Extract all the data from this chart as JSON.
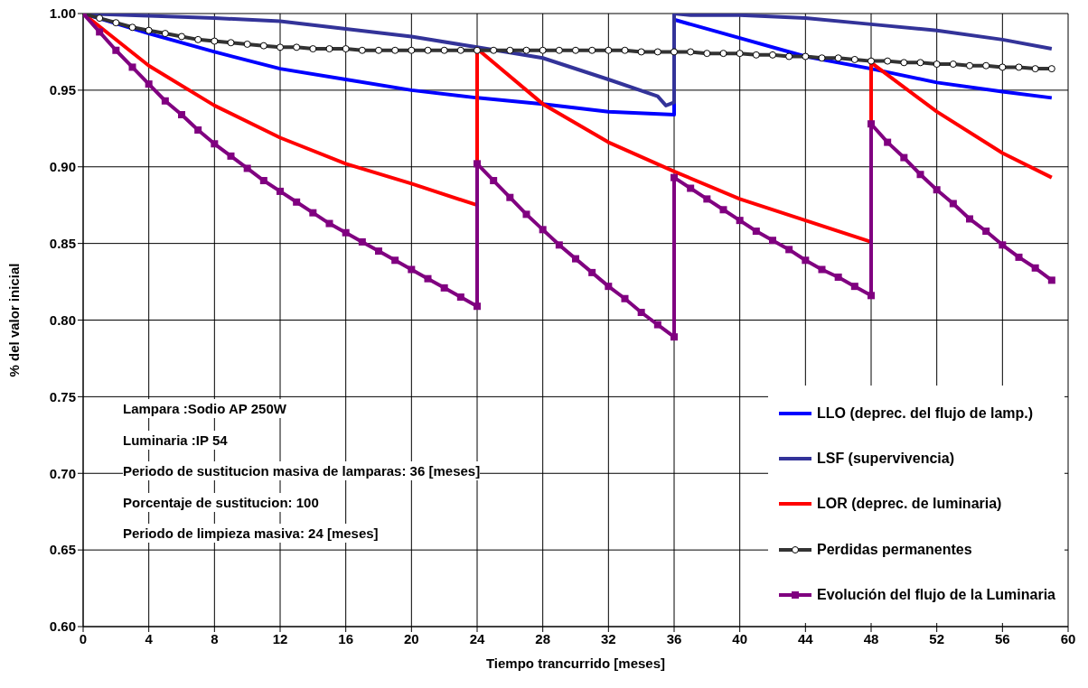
{
  "chart_data": {
    "type": "line",
    "xlabel": "Tiempo trancurrido [meses]",
    "ylabel": "% del valor inicial",
    "xlim": [
      0,
      60
    ],
    "xticks": [
      0,
      4,
      8,
      12,
      16,
      20,
      24,
      28,
      32,
      36,
      40,
      44,
      48,
      52,
      56,
      60
    ],
    "ylim": [
      0.6,
      1.0
    ],
    "yticks": [
      {
        "value": 0.6,
        "label": "0.60"
      },
      {
        "value": 0.65,
        "label": "0.65"
      },
      {
        "value": 0.7,
        "label": "0.70"
      },
      {
        "value": 0.75,
        "label": "0.75"
      },
      {
        "value": 0.8,
        "label": "0.80"
      },
      {
        "value": 0.85,
        "label": "0.85"
      },
      {
        "value": 0.9,
        "label": "0.90"
      },
      {
        "value": 0.95,
        "label": "0.95"
      },
      {
        "value": 1.0,
        "label": "1.00"
      }
    ],
    "grid": true,
    "legend": "bottom right",
    "line_style": "solid",
    "annotations": [
      "Lampara :Sodio AP 250W",
      "Luminaria :IP 54",
      "Periodo de sustitucion masiva de lamparas: 36  [meses]",
      "Porcentaje de sustitucion: 100",
      "Periodo de limpieza masiva: 24  [meses]"
    ],
    "series": [
      {
        "name": "LLO (deprec. del flujo de lamp.)",
        "color": "#0000ff",
        "marker": "none",
        "x": [
          0,
          4,
          8,
          12,
          16,
          20,
          24,
          28,
          32,
          36,
          36,
          40,
          44,
          48,
          52,
          56,
          59
        ],
        "values": [
          1.0,
          0.987,
          0.975,
          0.964,
          0.957,
          0.95,
          0.945,
          0.941,
          0.936,
          0.934,
          0.996,
          0.984,
          0.972,
          0.964,
          0.955,
          0.949,
          0.945
        ]
      },
      {
        "name": "LSF (supervivencia)",
        "color": "#333399",
        "marker": "none",
        "x": [
          0,
          8,
          12,
          16,
          20,
          24,
          28,
          32,
          35,
          35.5,
          36,
          36,
          37,
          40,
          44,
          48,
          52,
          56,
          59
        ],
        "values": [
          1.0,
          0.997,
          0.995,
          0.99,
          0.985,
          0.978,
          0.971,
          0.957,
          0.946,
          0.94,
          0.942,
          1.0,
          0.999,
          0.999,
          0.997,
          0.993,
          0.989,
          0.983,
          0.977
        ]
      },
      {
        "name": "LOR (deprec. de luminaria)",
        "color": "#ff0000",
        "marker": "none",
        "x": [
          0,
          4,
          8,
          12,
          16,
          20,
          24,
          24,
          28,
          32,
          36,
          40,
          44,
          48,
          48,
          52,
          56,
          59
        ],
        "values": [
          1.0,
          0.966,
          0.94,
          0.919,
          0.902,
          0.889,
          0.875,
          0.977,
          0.941,
          0.916,
          0.897,
          0.879,
          0.865,
          0.851,
          0.968,
          0.936,
          0.909,
          0.893
        ]
      },
      {
        "name": "Perdidas permanentes",
        "color": "#333333",
        "marker": "circle",
        "x": [
          0,
          1,
          2,
          3,
          4,
          5,
          6,
          7,
          8,
          9,
          10,
          11,
          12,
          13,
          14,
          15,
          16,
          17,
          18,
          19,
          20,
          21,
          22,
          23,
          24,
          25,
          26,
          27,
          28,
          29,
          30,
          31,
          32,
          33,
          34,
          35,
          36,
          37,
          38,
          39,
          40,
          41,
          42,
          43,
          44,
          45,
          46,
          47,
          48,
          49,
          50,
          51,
          52,
          53,
          54,
          55,
          56,
          57,
          58,
          59
        ],
        "values": [
          1.0,
          0.997,
          0.994,
          0.991,
          0.989,
          0.987,
          0.985,
          0.983,
          0.982,
          0.981,
          0.98,
          0.979,
          0.978,
          0.978,
          0.977,
          0.977,
          0.977,
          0.976,
          0.976,
          0.976,
          0.976,
          0.976,
          0.976,
          0.976,
          0.976,
          0.976,
          0.976,
          0.976,
          0.976,
          0.976,
          0.976,
          0.976,
          0.976,
          0.976,
          0.975,
          0.975,
          0.975,
          0.975,
          0.974,
          0.974,
          0.974,
          0.973,
          0.973,
          0.972,
          0.972,
          0.971,
          0.971,
          0.97,
          0.969,
          0.969,
          0.968,
          0.968,
          0.967,
          0.967,
          0.966,
          0.966,
          0.965,
          0.965,
          0.964,
          0.964
        ]
      },
      {
        "name": "Evolución del flujo de la Luminaria",
        "color": "#800080",
        "marker": "square",
        "x": [
          0,
          1,
          2,
          3,
          4,
          5,
          6,
          7,
          8,
          9,
          10,
          11,
          12,
          13,
          14,
          15,
          16,
          17,
          18,
          19,
          20,
          21,
          22,
          23,
          24,
          24,
          25,
          26,
          27,
          28,
          29,
          30,
          31,
          32,
          33,
          34,
          35,
          36,
          36,
          37,
          38,
          39,
          40,
          41,
          42,
          43,
          44,
          45,
          46,
          47,
          48,
          48,
          49,
          50,
          51,
          52,
          53,
          54,
          55,
          56,
          57,
          58,
          59
        ],
        "values": [
          1.0,
          0.988,
          0.976,
          0.965,
          0.954,
          0.943,
          0.934,
          0.924,
          0.915,
          0.907,
          0.899,
          0.891,
          0.884,
          0.877,
          0.87,
          0.863,
          0.857,
          0.851,
          0.845,
          0.839,
          0.833,
          0.827,
          0.821,
          0.815,
          0.809,
          0.902,
          0.891,
          0.88,
          0.869,
          0.859,
          0.849,
          0.84,
          0.831,
          0.822,
          0.814,
          0.805,
          0.797,
          0.789,
          0.893,
          0.886,
          0.879,
          0.872,
          0.865,
          0.858,
          0.852,
          0.846,
          0.839,
          0.833,
          0.828,
          0.822,
          0.816,
          0.928,
          0.916,
          0.906,
          0.895,
          0.885,
          0.876,
          0.866,
          0.858,
          0.849,
          0.841,
          0.834,
          0.826
        ]
      }
    ]
  }
}
